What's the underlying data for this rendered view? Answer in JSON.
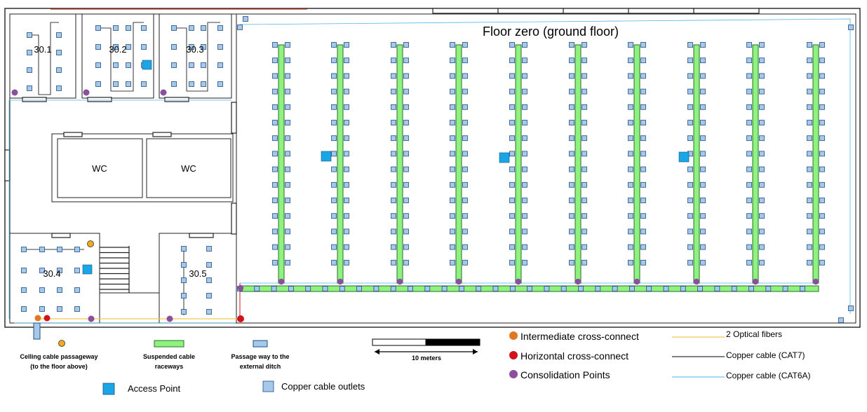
{
  "title": "Floor zero (ground floor)",
  "rooms": {
    "r301": "30.1",
    "r302": "30.2",
    "r303": "30.3",
    "r304": "30.4",
    "r305": "30.5",
    "wc1": "WC",
    "wc2": "WC"
  },
  "scale": {
    "label": "10 meters"
  },
  "legend": {
    "ceiling_passageway": [
      "Celling cable passageway",
      "(to the floor above)"
    ],
    "suspended_raceways": [
      "Suspended cable",
      "raceways"
    ],
    "external_passage": [
      "Passage way to the",
      "external ditch"
    ],
    "access_point": "Access Point",
    "copper_outlets": "Copper cable outlets",
    "intermediate_cc": "Intermediate cross-connect",
    "horizontal_cc": "Horizontal cross-connect",
    "consolidation_points": "Consolidation Points",
    "optical_fibers": "2 Optical fibers",
    "copper_cat7": "Copper cable (CAT7)",
    "copper_cat6a": "Copper cable (CAT6A)"
  },
  "colors": {
    "raceway_fill": "#8ef27e",
    "raceway_stroke": "#2f6b2f",
    "outlet_fill": "#a6c8ea",
    "outlet_stroke": "#1f4f7f",
    "access_point": "#19a6e6",
    "intermediate_cc": "#e07a22",
    "horizontal_cc": "#d0141a",
    "consolidation": "#8a4f9e",
    "ceiling_passage": "#f3a81f",
    "fiber": "#f3c64f",
    "cat6a": "#4fb6e6",
    "cat7": "#000000"
  }
}
